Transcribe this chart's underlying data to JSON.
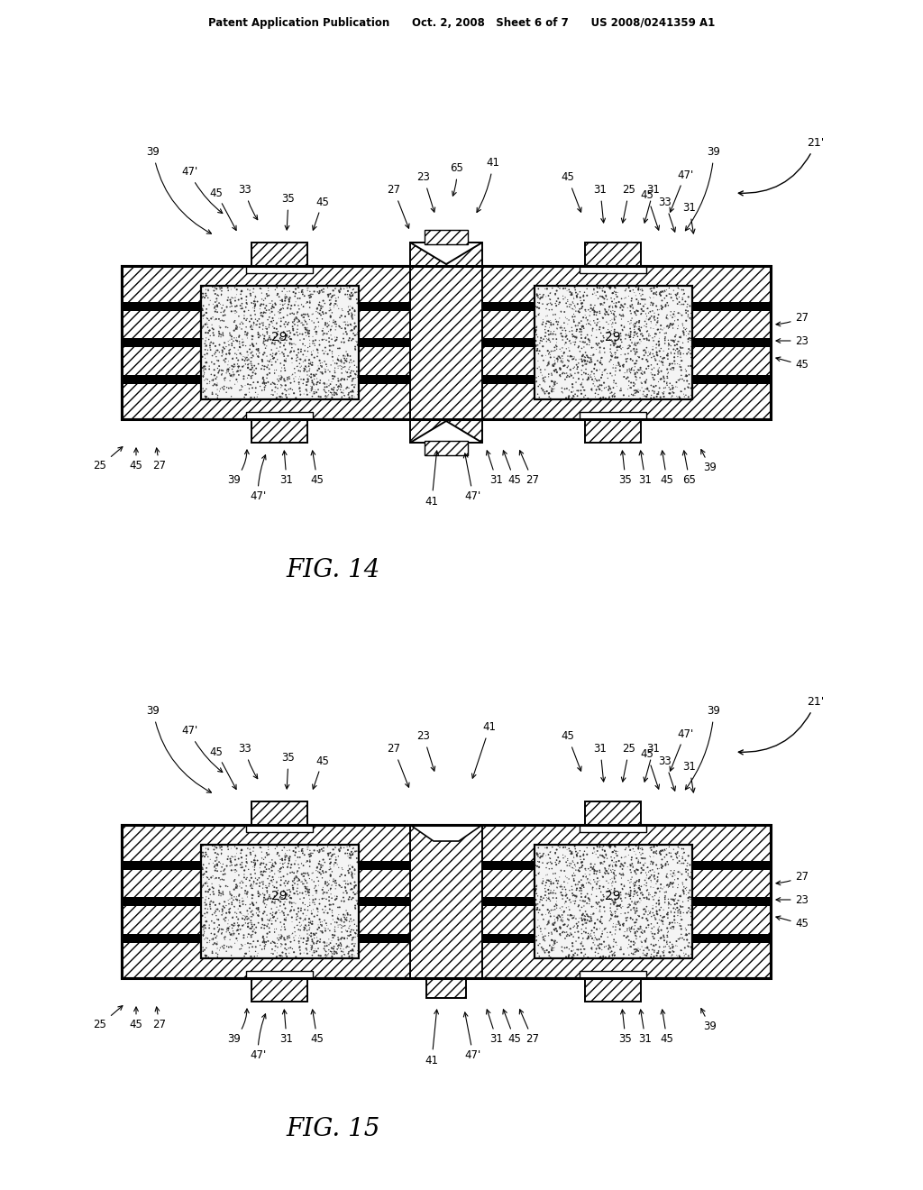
{
  "header": "Patent Application Publication      Oct. 2, 2008   Sheet 6 of 7      US 2008/0241359 A1",
  "fig14_label": "FIG. 14",
  "fig15_label": "FIG. 15"
}
